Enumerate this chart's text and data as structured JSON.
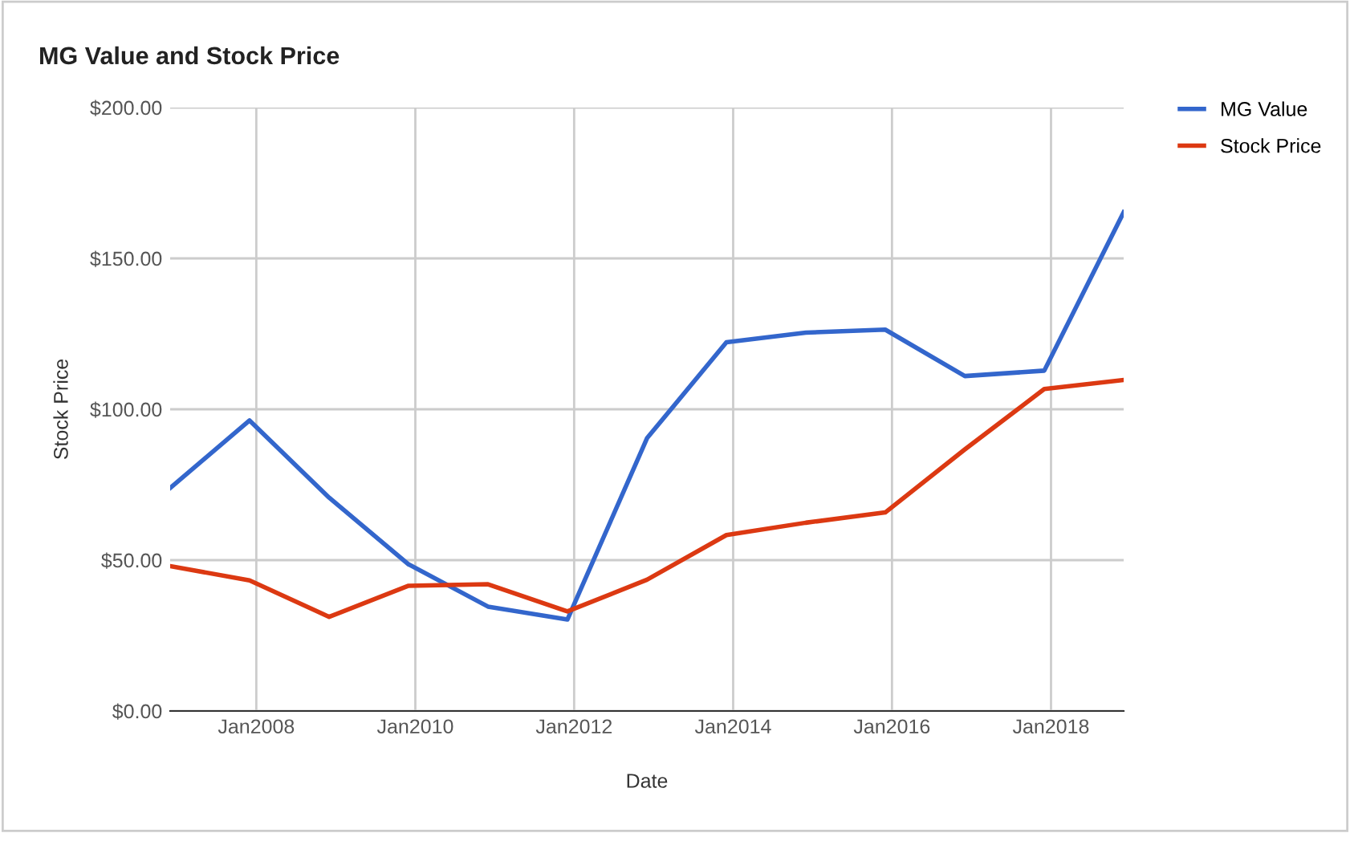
{
  "chart_data": {
    "type": "line",
    "title": "MG Value and Stock Price",
    "xlabel": "Date",
    "ylabel": "Stock Price",
    "x": [
      "2006-12",
      "2007-12",
      "2008-12",
      "2009-12",
      "2010-12",
      "2011-12",
      "2012-12",
      "2013-12",
      "2014-12",
      "2015-12",
      "2016-12",
      "2017-12",
      "2018-12"
    ],
    "series": [
      {
        "name": "MG Value",
        "color": "#3366cc",
        "values": [
          73.9,
          96.3,
          70.7,
          48.6,
          34.6,
          30.3,
          90.4,
          122.2,
          125.4,
          126.4,
          111.0,
          112.8,
          165.3
        ]
      },
      {
        "name": "Stock Price",
        "color": "#dc3912",
        "values": [
          48.0,
          43.3,
          31.2,
          41.5,
          42.0,
          33.0,
          43.5,
          58.3,
          62.4,
          65.8,
          86.7,
          106.7,
          109.7
        ]
      }
    ],
    "xlim": [
      "2006-12",
      "2018-12"
    ],
    "xticks": [
      {
        "value": "2008-01",
        "label": "Jan2008"
      },
      {
        "value": "2010-01",
        "label": "Jan2010"
      },
      {
        "value": "2012-01",
        "label": "Jan2012"
      },
      {
        "value": "2014-01",
        "label": "Jan2014"
      },
      {
        "value": "2016-01",
        "label": "Jan2016"
      },
      {
        "value": "2018-01",
        "label": "Jan2018"
      }
    ],
    "ylim": [
      0,
      200
    ],
    "yticks": [
      {
        "value": 0,
        "label": "$0.00"
      },
      {
        "value": 50,
        "label": "$50.00"
      },
      {
        "value": 100,
        "label": "$100.00"
      },
      {
        "value": 150,
        "label": "$150.00"
      },
      {
        "value": 200,
        "label": "$200.00"
      }
    ],
    "grid": true,
    "legend": "top right",
    "marker": "none",
    "line_style": "solid"
  }
}
